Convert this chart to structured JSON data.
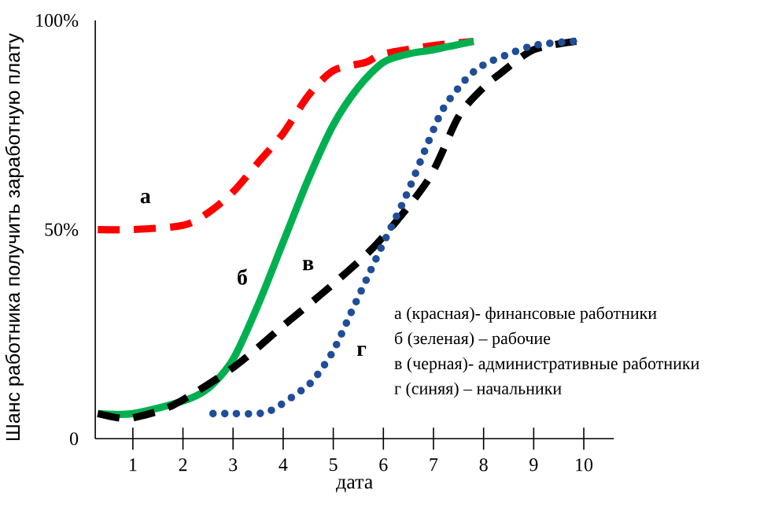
{
  "chart_data": {
    "type": "line",
    "xlabel": "дата",
    "ylabel": "Шанс работника получить заработную плату",
    "xlim": [
      0.25,
      10.6
    ],
    "ylim": [
      0,
      100
    ],
    "xticks": [
      1,
      2,
      3,
      4,
      5,
      6,
      7,
      8,
      9,
      10
    ],
    "yticks": [
      0,
      {
        "value": 50,
        "label": "50%"
      },
      {
        "value": 100,
        "label": "100%"
      }
    ],
    "grid": false,
    "marker": "none",
    "series": [
      {
        "name": "а",
        "color": "#ff0000",
        "line_style": "dashed",
        "x": [
          0.3,
          1,
          2,
          2.5,
          3,
          3.5,
          4,
          4.5,
          5,
          5.65,
          6,
          7,
          7.8
        ],
        "values": [
          50,
          50,
          51,
          54,
          59,
          66,
          73,
          82,
          88,
          90,
          92,
          94,
          95
        ]
      },
      {
        "name": "б",
        "color": "#00b050",
        "line_style": "solid",
        "x": [
          0.3,
          1,
          2,
          2.5,
          3,
          3.5,
          4,
          4.5,
          5,
          5.5,
          6,
          6.5,
          7,
          7.8
        ],
        "values": [
          6,
          6,
          9,
          12,
          19,
          32,
          47,
          62,
          75,
          84,
          90,
          92,
          93,
          95
        ]
      },
      {
        "name": "в",
        "color": "#000000",
        "line_style": "dashed",
        "x": [
          0.3,
          0.7,
          1,
          1.8,
          3,
          4,
          5,
          5.9,
          6.9,
          7.5,
          8,
          8.3,
          9,
          9.85
        ],
        "values": [
          6,
          5,
          5,
          8,
          17,
          27,
          37,
          47,
          62,
          77,
          84,
          87,
          93,
          95
        ]
      },
      {
        "name": "г",
        "color": "#1f4e99",
        "line_style": "dotted",
        "x": [
          2.6,
          3,
          3.5,
          3.8,
          4.3,
          4.6,
          5,
          5.35,
          5.66,
          5.97,
          6.45,
          6.9,
          7.2,
          7.65,
          7.95,
          8.3,
          9,
          9.8
        ],
        "values": [
          6,
          6,
          6,
          7,
          11,
          14,
          21,
          30,
          38,
          46,
          58,
          71,
          79,
          86,
          89,
          91,
          94,
          95
        ]
      }
    ],
    "annotations": [
      "а (красная)-  финансовые работники",
      "б (зеленая)  – рабочие",
      "в (черная)-  административные  работники",
      "г (синяя) – начальники"
    ]
  }
}
